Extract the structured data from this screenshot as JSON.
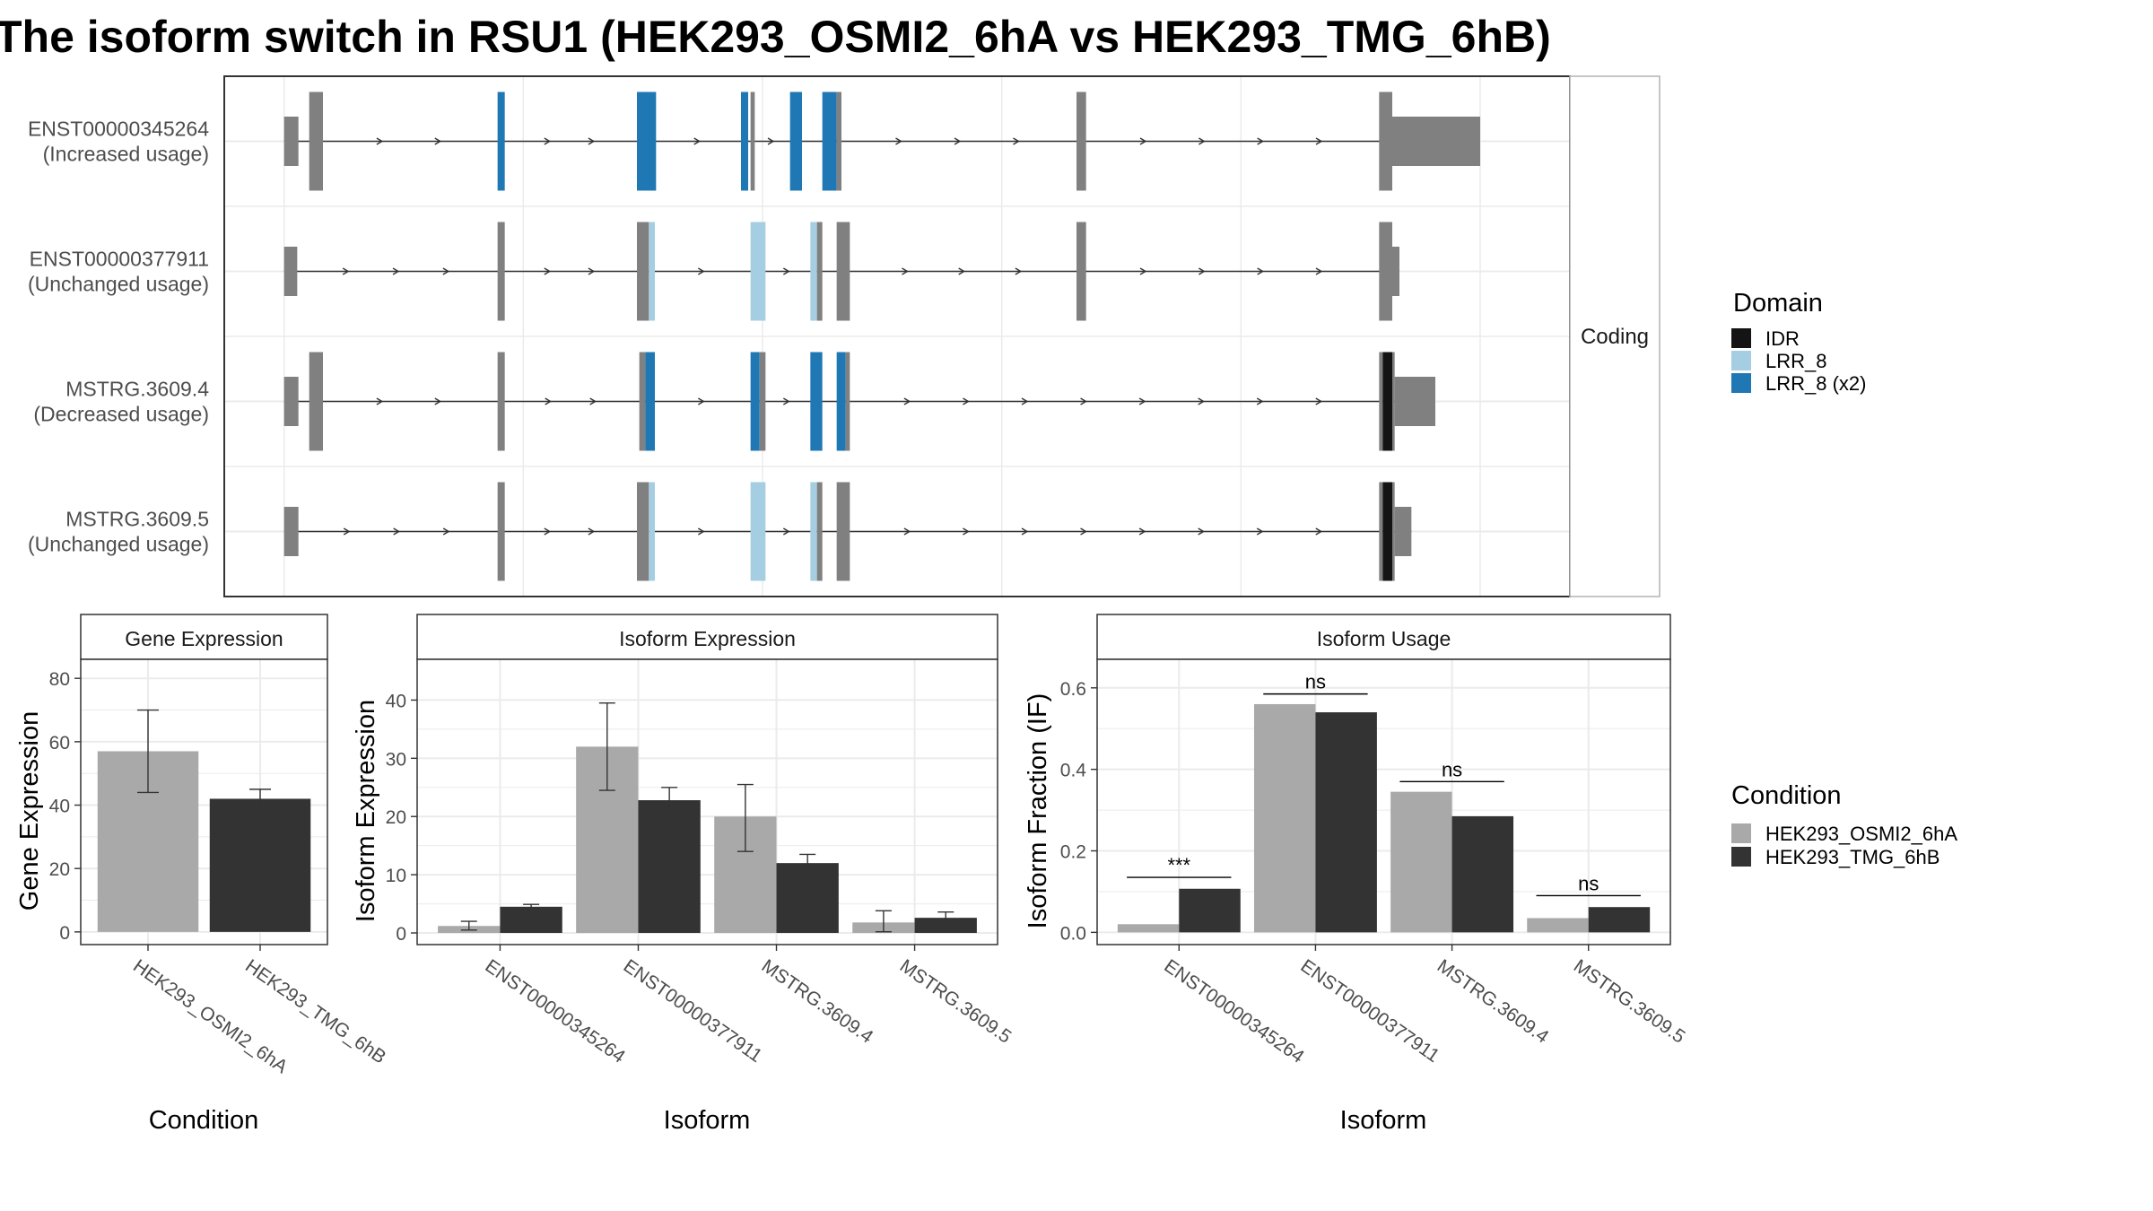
{
  "title": "The isoform switch in RSU1 (HEK293_OSMI2_6hA vs HEK293_TMG_6hB)",
  "colors": {
    "exon": "#808080",
    "intron": "#333333",
    "IDR": "#141414",
    "LRR_8": "#a6cee3",
    "LRR_8_x2": "#1f78b4",
    "cond_a": "#a9a9a9",
    "cond_b": "#333333",
    "panel_border": "#333333",
    "grid": "#ebebeb",
    "strip_fill": "#ffffff"
  },
  "structure": {
    "facet_label": "Coding",
    "transcripts": [
      {
        "id": "ENST00000345264",
        "usage": "(Increased usage)",
        "segments": [
          [
            0.0,
            0.024,
            "n"
          ],
          [
            0.042,
            0.065,
            "c",
            null
          ],
          [
            0.357,
            0.369,
            "c",
            "LRR_8_x2"
          ],
          [
            0.59,
            0.622,
            "c",
            "LRR_8_x2"
          ],
          [
            0.764,
            0.776,
            "c",
            "LRR_8_x2"
          ],
          [
            0.78,
            0.787,
            "c",
            null
          ],
          [
            0.846,
            0.866,
            "c",
            "LRR_8_x2"
          ],
          [
            0.9,
            0.924,
            "c",
            "LRR_8_x2"
          ],
          [
            0.924,
            0.932,
            "c",
            null
          ],
          [
            1.325,
            1.341,
            "c",
            null
          ],
          [
            1.831,
            1.853,
            "c",
            null
          ],
          [
            1.853,
            2.0,
            "n"
          ]
        ]
      },
      {
        "id": "ENST00000377911",
        "usage": "(Unchanged usage)",
        "segments": [
          [
            0.0,
            0.022,
            "n"
          ],
          [
            0.357,
            0.369,
            "c",
            null
          ],
          [
            0.59,
            0.61,
            "c",
            null
          ],
          [
            0.61,
            0.62,
            "c",
            "LRR_8"
          ],
          [
            0.78,
            0.805,
            "c",
            "LRR_8"
          ],
          [
            0.88,
            0.891,
            "c",
            "LRR_8"
          ],
          [
            0.891,
            0.9,
            "c",
            null
          ],
          [
            0.924,
            0.946,
            "c",
            null
          ],
          [
            1.325,
            1.341,
            "c",
            null
          ],
          [
            1.831,
            1.853,
            "c",
            null
          ],
          [
            1.853,
            1.865,
            "n"
          ]
        ]
      },
      {
        "id": "MSTRG.3609.4",
        "usage": "(Decreased usage)",
        "segments": [
          [
            0.0,
            0.024,
            "n"
          ],
          [
            0.042,
            0.065,
            "c",
            null
          ],
          [
            0.357,
            0.369,
            "c",
            null
          ],
          [
            0.594,
            0.604,
            "c",
            null
          ],
          [
            0.604,
            0.62,
            "c",
            "LRR_8_x2"
          ],
          [
            0.78,
            0.795,
            "c",
            "LRR_8_x2"
          ],
          [
            0.795,
            0.805,
            "c",
            null
          ],
          [
            0.88,
            0.9,
            "c",
            "LRR_8_x2"
          ],
          [
            0.924,
            0.939,
            "c",
            "LRR_8_x2"
          ],
          [
            0.939,
            0.946,
            "c",
            null
          ],
          [
            1.831,
            1.837,
            "c",
            null
          ],
          [
            1.837,
            1.853,
            "c",
            "IDR"
          ],
          [
            1.853,
            1.857,
            "c",
            null
          ],
          [
            1.857,
            1.925,
            "n"
          ]
        ]
      },
      {
        "id": "MSTRG.3609.5",
        "usage": "(Unchanged usage)",
        "segments": [
          [
            0.0,
            0.024,
            "n"
          ],
          [
            0.357,
            0.369,
            "c",
            null
          ],
          [
            0.59,
            0.61,
            "c",
            null
          ],
          [
            0.61,
            0.62,
            "c",
            "LRR_8"
          ],
          [
            0.78,
            0.805,
            "c",
            "LRR_8"
          ],
          [
            0.88,
            0.891,
            "c",
            "LRR_8"
          ],
          [
            0.891,
            0.9,
            "c",
            null
          ],
          [
            0.924,
            0.946,
            "c",
            null
          ],
          [
            1.831,
            1.837,
            "c",
            null
          ],
          [
            1.837,
            1.853,
            "c",
            "IDR"
          ],
          [
            1.853,
            1.857,
            "c",
            null
          ],
          [
            1.857,
            1.885,
            "n"
          ]
        ]
      }
    ],
    "xlim": [
      -0.1,
      2.15
    ],
    "grid_x": [
      0.0,
      0.4,
      0.8,
      1.2,
      1.6,
      2.0
    ]
  },
  "domain_legend": {
    "title": "Domain",
    "entries": [
      {
        "label": "IDR",
        "key": "IDR"
      },
      {
        "label": "LRR_8",
        "key": "LRR_8"
      },
      {
        "label": "LRR_8 (x2)",
        "key": "LRR_8_x2"
      }
    ]
  },
  "condition_legend": {
    "title": "Condition",
    "entries": [
      {
        "label": "HEK293_OSMI2_6hA",
        "key": "cond_a"
      },
      {
        "label": "HEK293_TMG_6hB",
        "key": "cond_b"
      }
    ]
  },
  "chart_data": [
    {
      "type": "bar",
      "strip": "Gene Expression",
      "xlabel": "Condition",
      "ylabel": "Gene Expression",
      "categories": [
        "HEK293_OSMI2_6hA",
        "HEK293_TMG_6hB"
      ],
      "values": [
        57,
        42
      ],
      "err_low": [
        44,
        39.5
      ],
      "err_high": [
        70,
        45
      ],
      "ylim": [
        -4,
        86
      ],
      "yticks": [
        0,
        20,
        40,
        60,
        80
      ],
      "tick_labels": [
        "0",
        "20",
        "40",
        "60",
        "80"
      ]
    },
    {
      "type": "bar",
      "strip": "Isoform Expression",
      "xlabel": "Isoform",
      "ylabel": "Isoform Expression",
      "categories": [
        "ENST00000345264",
        "ENST00000377911",
        "MSTRG.3609.4",
        "MSTRG.3609.5"
      ],
      "series": [
        {
          "name": "HEK293_OSMI2_6hA",
          "values": [
            1.2,
            32,
            20,
            1.8
          ],
          "err_low": [
            0.5,
            24.5,
            14,
            0.2
          ],
          "err_high": [
            2,
            39.5,
            25.5,
            3.8
          ]
        },
        {
          "name": "HEK293_TMG_6hB",
          "values": [
            4.5,
            22.8,
            12,
            2.6
          ],
          "err_low": [
            4.0,
            20.5,
            10.5,
            1.6
          ],
          "err_high": [
            4.9,
            25,
            13.5,
            3.6
          ]
        }
      ],
      "ylim": [
        -2,
        47
      ],
      "yticks": [
        0,
        10,
        20,
        30,
        40
      ],
      "tick_labels": [
        "0",
        "10",
        "20",
        "30",
        "40"
      ]
    },
    {
      "type": "bar",
      "strip": "Isoform Usage",
      "xlabel": "Isoform",
      "ylabel": "Isoform Fraction (IF)",
      "categories": [
        "ENST00000345264",
        "ENST00000377911",
        "MSTRG.3609.4",
        "MSTRG.3609.5"
      ],
      "series": [
        {
          "name": "HEK293_OSMI2_6hA",
          "values": [
            0.02,
            0.56,
            0.345,
            0.035
          ]
        },
        {
          "name": "HEK293_TMG_6hB",
          "values": [
            0.107,
            0.54,
            0.285,
            0.062
          ]
        }
      ],
      "significance": [
        "***",
        "ns",
        "ns",
        "ns"
      ],
      "sig_y": [
        0.135,
        0.585,
        0.37,
        0.09
      ],
      "ylim": [
        -0.03,
        0.67
      ],
      "yticks": [
        0.0,
        0.2,
        0.4,
        0.6
      ],
      "tick_labels": [
        "0.0",
        "0.2",
        "0.4",
        "0.6"
      ]
    }
  ]
}
